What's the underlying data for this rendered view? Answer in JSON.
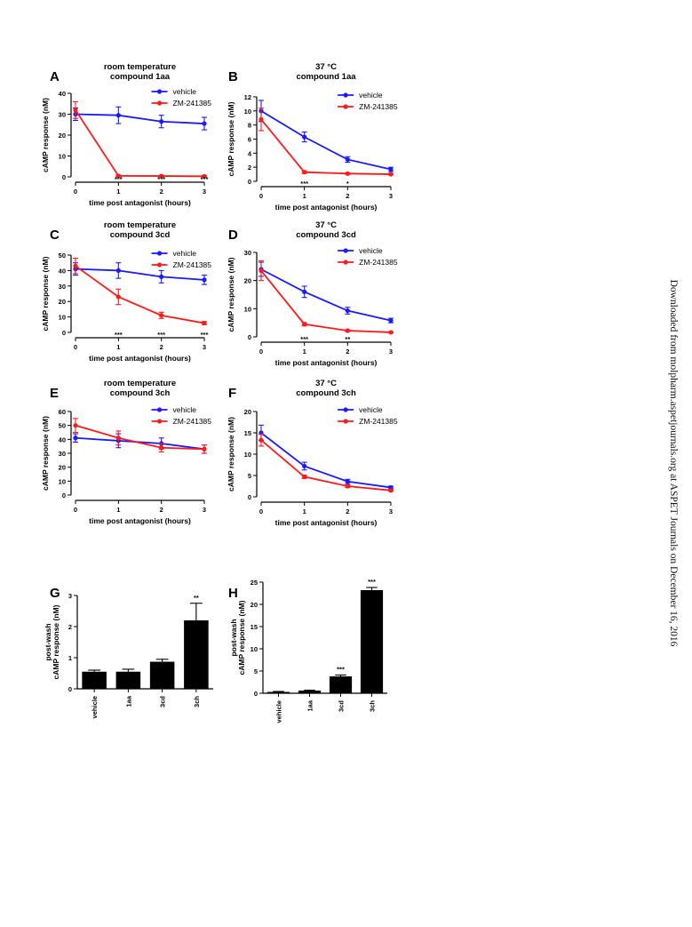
{
  "side_note": "Downloaded from molpharm.aspetjournals.org at ASPET Journals on December 16, 2016",
  "colors": {
    "vehicle": "#1a1aff",
    "antagonist": "#ff1a1a",
    "axis": "#000000",
    "bar": "#000000"
  },
  "chart_data": [
    {
      "panel": "A",
      "type": "line",
      "title": [
        "room temperature",
        "compound 1aa"
      ],
      "xlabel": "time post antagonist (hours)",
      "ylabel": "cAMP response (nM)",
      "x": [
        0,
        1,
        2,
        3
      ],
      "xlim": [
        0,
        3
      ],
      "ylim": [
        0,
        40
      ],
      "yticks": [
        0,
        10,
        20,
        30,
        40
      ],
      "series": [
        {
          "name": "vehicle",
          "values": [
            30,
            29.5,
            26.5,
            25.5
          ],
          "err": [
            3,
            4,
            3,
            3
          ]
        },
        {
          "name": "ZM-241385",
          "values": [
            32,
            0.5,
            0.4,
            0.3
          ],
          "err": [
            4,
            0.3,
            0.3,
            0.3
          ]
        }
      ],
      "annotations": [
        {
          "x": 1,
          "text": "***"
        },
        {
          "x": 2,
          "text": "***"
        },
        {
          "x": 3,
          "text": "***"
        }
      ]
    },
    {
      "panel": "B",
      "type": "line",
      "title": [
        "37 °C",
        "compound 1aa"
      ],
      "xlabel": "time post antagonist (hours)",
      "ylabel": "cAMP response (nM)",
      "x": [
        0,
        1,
        2,
        3
      ],
      "xlim": [
        0,
        3
      ],
      "ylim": [
        0,
        12
      ],
      "yticks": [
        0,
        2,
        4,
        6,
        8,
        10,
        12
      ],
      "series": [
        {
          "name": "vehicle",
          "values": [
            10,
            6.3,
            3.1,
            1.7
          ],
          "err": [
            1.5,
            0.7,
            0.4,
            0.3
          ]
        },
        {
          "name": "ZM-241385",
          "values": [
            8.8,
            1.3,
            1.1,
            1.0
          ],
          "err": [
            1.6,
            0.2,
            0.1,
            0.1
          ]
        }
      ],
      "annotations": [
        {
          "x": 1,
          "text": "***"
        },
        {
          "x": 2,
          "text": "*"
        }
      ]
    },
    {
      "panel": "C",
      "type": "line",
      "title": [
        "room temperature",
        "compound 3cd"
      ],
      "xlabel": "time post antagonist (hours)",
      "ylabel": "cAMP response (nM)",
      "x": [
        0,
        1,
        2,
        3
      ],
      "xlim": [
        0,
        3
      ],
      "ylim": [
        0,
        50
      ],
      "yticks": [
        0,
        10,
        20,
        30,
        40,
        50
      ],
      "series": [
        {
          "name": "vehicle",
          "values": [
            41,
            40,
            36,
            34
          ],
          "err": [
            4,
            5,
            4,
            3
          ]
        },
        {
          "name": "ZM-241385",
          "values": [
            43,
            23,
            11,
            6
          ],
          "err": [
            5,
            5,
            2,
            1
          ]
        }
      ],
      "annotations": [
        {
          "x": 1,
          "text": "***"
        },
        {
          "x": 2,
          "text": "***"
        },
        {
          "x": 3,
          "text": "***"
        }
      ]
    },
    {
      "panel": "D",
      "type": "line",
      "title": [
        "37 °C",
        "compound 3cd"
      ],
      "xlabel": "time post antagonist (hours)",
      "ylabel": "cAMP response (nM)",
      "x": [
        0,
        1,
        2,
        3
      ],
      "xlim": [
        0,
        3
      ],
      "ylim": [
        0,
        30
      ],
      "yticks": [
        0,
        10,
        20,
        30
      ],
      "series": [
        {
          "name": "vehicle",
          "values": [
            24,
            16,
            9.3,
            5.8
          ],
          "err": [
            2.5,
            2,
            1.2,
            0.8
          ]
        },
        {
          "name": "ZM-241385",
          "values": [
            23.5,
            4.5,
            2.2,
            1.6
          ],
          "err": [
            3.5,
            0.6,
            0.3,
            0.2
          ]
        }
      ],
      "annotations": [
        {
          "x": 1,
          "text": "***"
        },
        {
          "x": 2,
          "text": "**"
        }
      ]
    },
    {
      "panel": "E",
      "type": "line",
      "title": [
        "room temperature",
        "compound 3ch"
      ],
      "xlabel": "time post antagonist (hours)",
      "ylabel": "cAMP response (nM)",
      "x": [
        0,
        1,
        2,
        3
      ],
      "xlim": [
        0,
        3
      ],
      "ylim": [
        0,
        60
      ],
      "yticks": [
        0,
        10,
        20,
        30,
        40,
        50,
        60
      ],
      "series": [
        {
          "name": "vehicle",
          "values": [
            41,
            39,
            37,
            33
          ],
          "err": [
            3,
            5,
            4,
            3
          ]
        },
        {
          "name": "ZM-241385",
          "values": [
            50,
            41,
            34,
            33
          ],
          "err": [
            5,
            5,
            3,
            3
          ]
        }
      ],
      "annotations": []
    },
    {
      "panel": "F",
      "type": "line",
      "title": [
        "37 °C",
        "compound 3ch"
      ],
      "xlabel": "time post antagonist (hours)",
      "ylabel": "cAMP response (nM)",
      "x": [
        0,
        1,
        2,
        3
      ],
      "xlim": [
        0,
        3
      ],
      "ylim": [
        0,
        20
      ],
      "yticks": [
        0,
        5,
        10,
        15,
        20
      ],
      "series": [
        {
          "name": "vehicle",
          "values": [
            15,
            7.2,
            3.6,
            2.2
          ],
          "err": [
            1.8,
            0.9,
            0.5,
            0.3
          ]
        },
        {
          "name": "ZM-241385",
          "values": [
            13.3,
            4.7,
            2.5,
            1.5
          ],
          "err": [
            1.4,
            0.4,
            0.3,
            0.2
          ]
        }
      ],
      "annotations": []
    },
    {
      "panel": "G",
      "type": "bar",
      "ylabel": [
        "post-wash",
        "cAMP response  (nM)"
      ],
      "categories": [
        "vehicle",
        "1aa",
        "3cd",
        "3ch"
      ],
      "values": [
        0.55,
        0.55,
        0.87,
        2.2
      ],
      "err": [
        0.05,
        0.08,
        0.08,
        0.55
      ],
      "ylim": [
        0,
        3
      ],
      "yticks": [
        0,
        1,
        2,
        3
      ],
      "annotations": [
        {
          "index": 3,
          "text": "**"
        }
      ]
    },
    {
      "panel": "H",
      "type": "bar",
      "ylabel": [
        "post-wash",
        "cAMP response  (nM)"
      ],
      "categories": [
        "vehicle",
        "1aa",
        "3cd",
        "3ch"
      ],
      "values": [
        0.3,
        0.6,
        3.8,
        23.2
      ],
      "err": [
        0.1,
        0.1,
        0.3,
        0.6
      ],
      "ylim": [
        0,
        25
      ],
      "yticks": [
        0,
        5,
        10,
        15,
        20,
        25
      ],
      "annotations": [
        {
          "index": 2,
          "text": "***"
        },
        {
          "index": 3,
          "text": "***"
        }
      ]
    }
  ]
}
